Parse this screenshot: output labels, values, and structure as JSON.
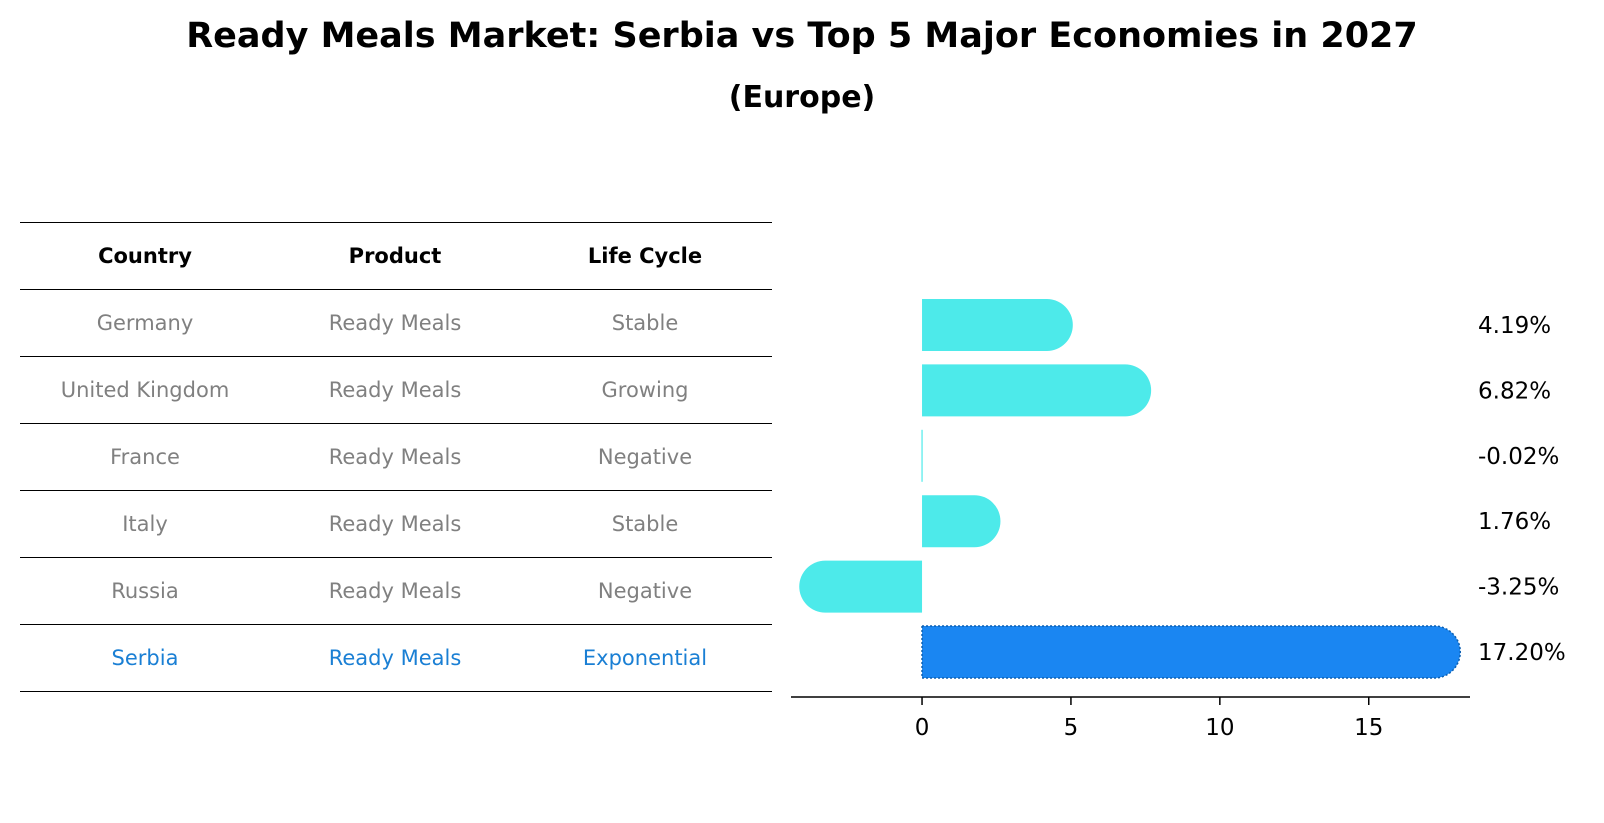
{
  "header": {
    "title": "Ready Meals Market: Serbia vs Top 5 Major Economies in 2027",
    "subtitle": "(Europe)"
  },
  "table": {
    "columns": [
      "Country",
      "Product",
      "Life Cycle"
    ],
    "rows": [
      {
        "country": "Germany",
        "product": "Ready Meals",
        "life_cycle": "Stable"
      },
      {
        "country": "United Kingdom",
        "product": "Ready Meals",
        "life_cycle": "Growing"
      },
      {
        "country": "France",
        "product": "Ready Meals",
        "life_cycle": "Negative"
      },
      {
        "country": "Italy",
        "product": "Ready Meals",
        "life_cycle": "Stable"
      },
      {
        "country": "Russia",
        "product": "Ready Meals",
        "life_cycle": "Negative"
      },
      {
        "country": "Serbia",
        "product": "Ready Meals",
        "life_cycle": "Exponential"
      }
    ]
  },
  "colors": {
    "bar": "#4deaea",
    "highlight_bar": "#1a86f2",
    "highlight_text": "#1a7fd4",
    "body_text": "#808080"
  },
  "chart_data": {
    "type": "bar",
    "orientation": "horizontal",
    "categories": [
      "Germany",
      "United Kingdom",
      "France",
      "Italy",
      "Russia",
      "Serbia"
    ],
    "values": [
      4.19,
      6.82,
      -0.02,
      1.76,
      -3.25,
      17.2
    ],
    "value_labels": [
      "4.19%",
      "6.82%",
      "-0.02%",
      "1.76%",
      "-3.25%",
      "17.20%"
    ],
    "highlight_index": 5,
    "xlim": [
      -4.4,
      18.4
    ],
    "xticks": [
      0,
      5,
      10,
      15
    ],
    "grid": false
  }
}
